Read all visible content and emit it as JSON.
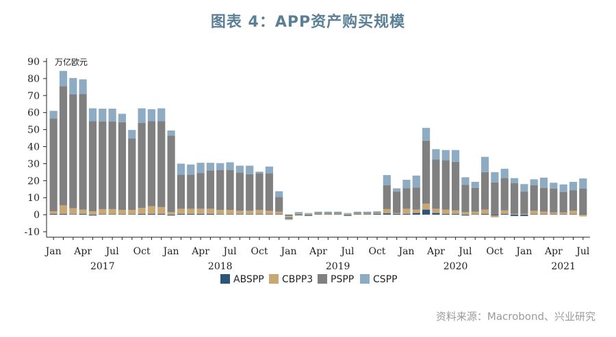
{
  "title": "图表 4：APP资产购买规模",
  "source": "资料来源：Macrobond、兴业研究",
  "chart_data": {
    "type": "bar",
    "stacked": true,
    "unit_label": "万亿欧元",
    "ylim": [
      -10,
      90
    ],
    "yticks": [
      -10,
      0,
      10,
      20,
      30,
      40,
      50,
      60,
      70,
      80,
      90
    ],
    "grid": false,
    "legend_position": "bottom",
    "categories": [
      "2017-01",
      "2017-02",
      "2017-03",
      "2017-04",
      "2017-05",
      "2017-06",
      "2017-07",
      "2017-08",
      "2017-09",
      "2017-10",
      "2017-11",
      "2017-12",
      "2018-01",
      "2018-02",
      "2018-03",
      "2018-04",
      "2018-05",
      "2018-06",
      "2018-07",
      "2018-08",
      "2018-09",
      "2018-10",
      "2018-11",
      "2018-12",
      "2019-01",
      "2019-02",
      "2019-03",
      "2019-04",
      "2019-05",
      "2019-06",
      "2019-07",
      "2019-08",
      "2019-09",
      "2019-10",
      "2019-11",
      "2019-12",
      "2020-01",
      "2020-02",
      "2020-03",
      "2020-04",
      "2020-05",
      "2020-06",
      "2020-07",
      "2020-08",
      "2020-09",
      "2020-10",
      "2020-11",
      "2020-12",
      "2021-01",
      "2021-02",
      "2021-03",
      "2021-04",
      "2021-05",
      "2021-06",
      "2021-07"
    ],
    "x_month_labels": [
      "Jan",
      "Apr",
      "Jul",
      "Oct",
      "Jan",
      "Apr",
      "Jul",
      "Oct",
      "Jan",
      "Apr",
      "Jul",
      "Oct",
      "Jan",
      "Apr",
      "Jul",
      "Oct",
      "Jan",
      "Apr",
      "Jul"
    ],
    "x_month_label_index": [
      0,
      3,
      6,
      9,
      12,
      15,
      18,
      21,
      24,
      27,
      30,
      33,
      36,
      39,
      42,
      45,
      48,
      51,
      54
    ],
    "x_year_labels": [
      "2017",
      "2018",
      "2019",
      "2020",
      "2021"
    ],
    "x_year_label_index": [
      5,
      17,
      29,
      41,
      52
    ],
    "series": [
      {
        "name": "ABSPP",
        "color": "#2c5578",
        "values": [
          0.5,
          0.5,
          0.3,
          0.5,
          -0.5,
          0.3,
          0.3,
          0.3,
          0.3,
          0.5,
          0.5,
          0.5,
          -0.5,
          0.5,
          0.5,
          0.5,
          0.5,
          0.3,
          0.3,
          0.3,
          0.3,
          0.3,
          0.3,
          0.3,
          -0.5,
          0.3,
          -0.3,
          0.3,
          0.3,
          0.3,
          -0.3,
          0.3,
          0.3,
          0.5,
          0.8,
          0.5,
          0.5,
          1,
          3,
          1,
          0.5,
          0.5,
          -0.5,
          0.3,
          0.5,
          -0.5,
          0.5,
          -0.8,
          -0.8,
          0.3,
          0.3,
          0.3,
          0.3,
          0.3,
          0.3
        ]
      },
      {
        "name": "CBPP3",
        "color": "#c9a774",
        "values": [
          1.5,
          5,
          3.5,
          2.5,
          2,
          3,
          3,
          2.5,
          2.5,
          3.5,
          4.5,
          4,
          1.5,
          3,
          3,
          3,
          3,
          2.5,
          2.5,
          2,
          2,
          2.5,
          2,
          1.5,
          -1,
          0.5,
          0.5,
          0.5,
          0.5,
          0.5,
          0.5,
          0.5,
          0.5,
          0.5,
          2.5,
          0.5,
          3,
          2,
          3.5,
          2.5,
          2.5,
          2,
          1.5,
          1.5,
          2.5,
          -1,
          2,
          0.5,
          0.5,
          2,
          1.5,
          1,
          1,
          2,
          -1
        ]
      },
      {
        "name": "PSPP",
        "color": "#808080",
        "values": [
          54.5,
          70,
          67,
          68,
          53,
          51.5,
          51.5,
          51.5,
          42,
          50,
          50,
          50.5,
          45,
          20,
          20,
          21,
          22.5,
          23.5,
          23.5,
          22.5,
          21.5,
          21.5,
          22,
          8.5,
          -1,
          -0.5,
          -0.5,
          0.5,
          0.5,
          0.5,
          -0.5,
          0.5,
          0.5,
          0.5,
          14,
          12.5,
          12,
          13,
          37,
          29,
          29,
          28.5,
          16,
          14,
          22,
          19,
          19,
          18,
          13,
          15,
          14,
          14,
          12,
          12,
          15
        ]
      },
      {
        "name": "CSPP",
        "color": "#8dabc2",
        "values": [
          4.5,
          9,
          9.5,
          8.5,
          7.5,
          7.5,
          7.5,
          5,
          5,
          8.5,
          7,
          7.5,
          3,
          6.5,
          6,
          6,
          4.5,
          4,
          4.5,
          4,
          5,
          1,
          4,
          3.5,
          -0.5,
          0.8,
          0.5,
          0.5,
          0.5,
          0.5,
          0.5,
          0.5,
          0.5,
          0.5,
          6,
          2,
          5,
          7,
          7.5,
          6,
          6,
          7,
          4.5,
          3.5,
          9,
          6,
          5.5,
          3,
          4.5,
          3.5,
          6,
          3.5,
          4.5,
          5,
          6
        ]
      }
    ]
  }
}
